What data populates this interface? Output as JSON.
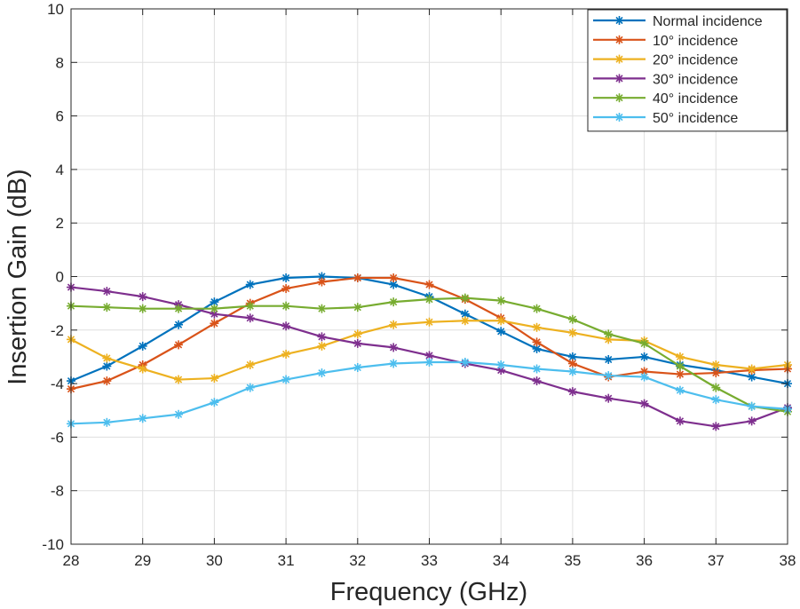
{
  "chart_data": {
    "type": "line",
    "title": "",
    "xlabel": "Frequency (GHz)",
    "ylabel": "Insertion Gain (dB)",
    "xlim": [
      28,
      38
    ],
    "ylim": [
      -10,
      10
    ],
    "xticks": [
      28,
      29,
      30,
      31,
      32,
      33,
      34,
      35,
      36,
      37,
      38
    ],
    "yticks": [
      -10,
      -8,
      -6,
      -4,
      -2,
      0,
      2,
      4,
      6,
      8,
      10
    ],
    "grid": true,
    "legend_position": "top-right",
    "marker": "asterisk",
    "x": [
      28,
      28.5,
      29,
      29.5,
      30,
      30.5,
      31,
      31.5,
      32,
      32.5,
      33,
      33.5,
      34,
      34.5,
      35,
      35.5,
      36,
      36.5,
      37,
      37.5,
      38
    ],
    "series": [
      {
        "name": "Normal incidence",
        "color": "#0072BD",
        "values": [
          -3.9,
          -3.35,
          -2.6,
          -1.8,
          -0.95,
          -0.3,
          -0.05,
          0.0,
          -0.05,
          -0.3,
          -0.75,
          -1.4,
          -2.05,
          -2.7,
          -3.0,
          -3.1,
          -3.0,
          -3.3,
          -3.5,
          -3.75,
          -4.0
        ]
      },
      {
        "name": "10° incidence",
        "color": "#D95319",
        "values": [
          -4.2,
          -3.9,
          -3.3,
          -2.55,
          -1.75,
          -1.0,
          -0.45,
          -0.2,
          -0.05,
          -0.05,
          -0.3,
          -0.85,
          -1.55,
          -2.45,
          -3.25,
          -3.75,
          -3.55,
          -3.65,
          -3.6,
          -3.5,
          -3.45
        ]
      },
      {
        "name": "20° incidence",
        "color": "#EDB120",
        "values": [
          -2.35,
          -3.05,
          -3.45,
          -3.85,
          -3.8,
          -3.3,
          -2.9,
          -2.6,
          -2.15,
          -1.8,
          -1.7,
          -1.65,
          -1.65,
          -1.9,
          -2.1,
          -2.35,
          -2.4,
          -3.0,
          -3.3,
          -3.45,
          -3.3
        ]
      },
      {
        "name": "30° incidence",
        "color": "#7E2F8E",
        "values": [
          -0.4,
          -0.55,
          -0.75,
          -1.05,
          -1.4,
          -1.55,
          -1.85,
          -2.25,
          -2.5,
          -2.65,
          -2.95,
          -3.25,
          -3.5,
          -3.9,
          -4.3,
          -4.55,
          -4.75,
          -5.4,
          -5.6,
          -5.4,
          -4.9
        ]
      },
      {
        "name": "40° incidence",
        "color": "#77AC30",
        "values": [
          -1.1,
          -1.15,
          -1.2,
          -1.2,
          -1.2,
          -1.1,
          -1.1,
          -1.2,
          -1.15,
          -0.95,
          -0.85,
          -0.8,
          -0.9,
          -1.2,
          -1.6,
          -2.15,
          -2.5,
          -3.35,
          -4.15,
          -4.85,
          -5.05
        ]
      },
      {
        "name": "50° incidence",
        "color": "#4DBEEE",
        "values": [
          -5.5,
          -5.45,
          -5.3,
          -5.15,
          -4.7,
          -4.15,
          -3.85,
          -3.6,
          -3.4,
          -3.25,
          -3.2,
          -3.2,
          -3.3,
          -3.45,
          -3.55,
          -3.7,
          -3.75,
          -4.25,
          -4.6,
          -4.85,
          -4.95
        ]
      }
    ]
  }
}
